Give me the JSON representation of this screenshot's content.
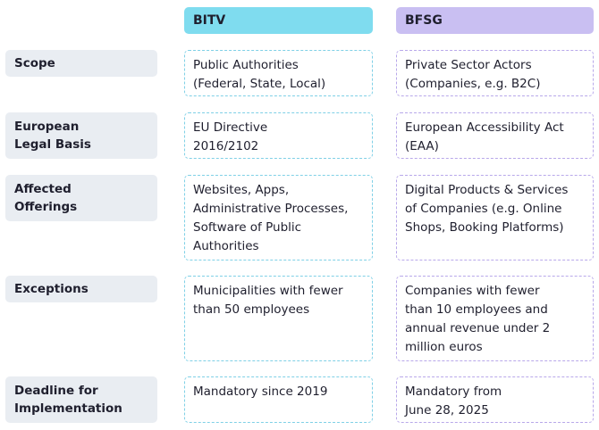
{
  "columns": {
    "bitv": "BITV",
    "bfsg": "BFSG"
  },
  "rows": [
    {
      "label": "Scope",
      "bitv": "Public Authorities\n(Federal, State, Local)",
      "bfsg": "Private Sector Actors\n(Companies, e.g. B2C)"
    },
    {
      "label": "European\nLegal Basis",
      "bitv": "EU Directive\n2016/2102",
      "bfsg": "European Accessibility Act\n(EAA)"
    },
    {
      "label": "Affected\nOfferings",
      "bitv": "Websites, Apps,\nAdministrative Processes,\nSoftware of Public\nAuthorities",
      "bfsg": "Digital Products & Services\nof Companies (e.g. Online\nShops, Booking Platforms)"
    },
    {
      "label": "Exceptions",
      "bitv": "Municipalities with fewer\nthan 50 employees",
      "bfsg": "Companies with fewer\nthan 10 employees and\nannual revenue under 2\nmillion euros"
    },
    {
      "label": "Deadline for\nImplementation",
      "bitv": "Mandatory since 2019",
      "bfsg": "Mandatory from\nJune 28, 2025"
    }
  ],
  "colors": {
    "bitv_header": "#7fdcef",
    "bfsg_header": "#c9bff2",
    "label_bg": "#e9edf2"
  }
}
